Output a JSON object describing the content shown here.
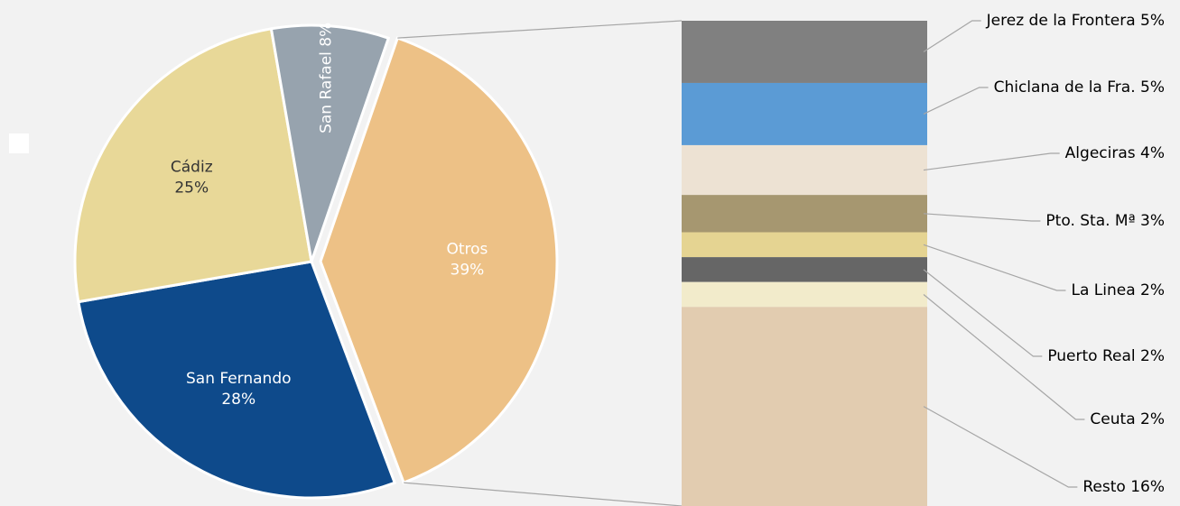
{
  "chart_data": {
    "type": "pie",
    "categories": [
      "Otros",
      "San Fernando",
      "Cádiz",
      "San Rafael"
    ],
    "values": [
      39,
      28,
      25,
      8
    ],
    "value_labels": [
      "39%",
      "28%",
      "25%",
      "8%"
    ],
    "colors": [
      "#EDC186",
      "#0E4A8B",
      "#E8D898",
      "#97A3AE"
    ],
    "breakdown": {
      "type": "bar",
      "categories": [
        "Jerez de la Frontera",
        "Chiclana de la Fra.",
        "Algeciras",
        "Pto. Sta. Mª",
        "La Linea",
        "Puerto Real",
        "Ceuta",
        "Resto"
      ],
      "values": [
        5,
        5,
        4,
        3,
        2,
        2,
        2,
        16
      ],
      "value_labels": [
        "5%",
        "5%",
        "4%",
        "3%",
        "2%",
        "2%",
        "2%",
        "16%"
      ],
      "colors": [
        "#808080",
        "#5B9BD5",
        "#EDE2D3",
        "#A69770",
        "#E5D492",
        "#666666",
        "#F2EBCB",
        "#E2CCB0"
      ]
    }
  }
}
